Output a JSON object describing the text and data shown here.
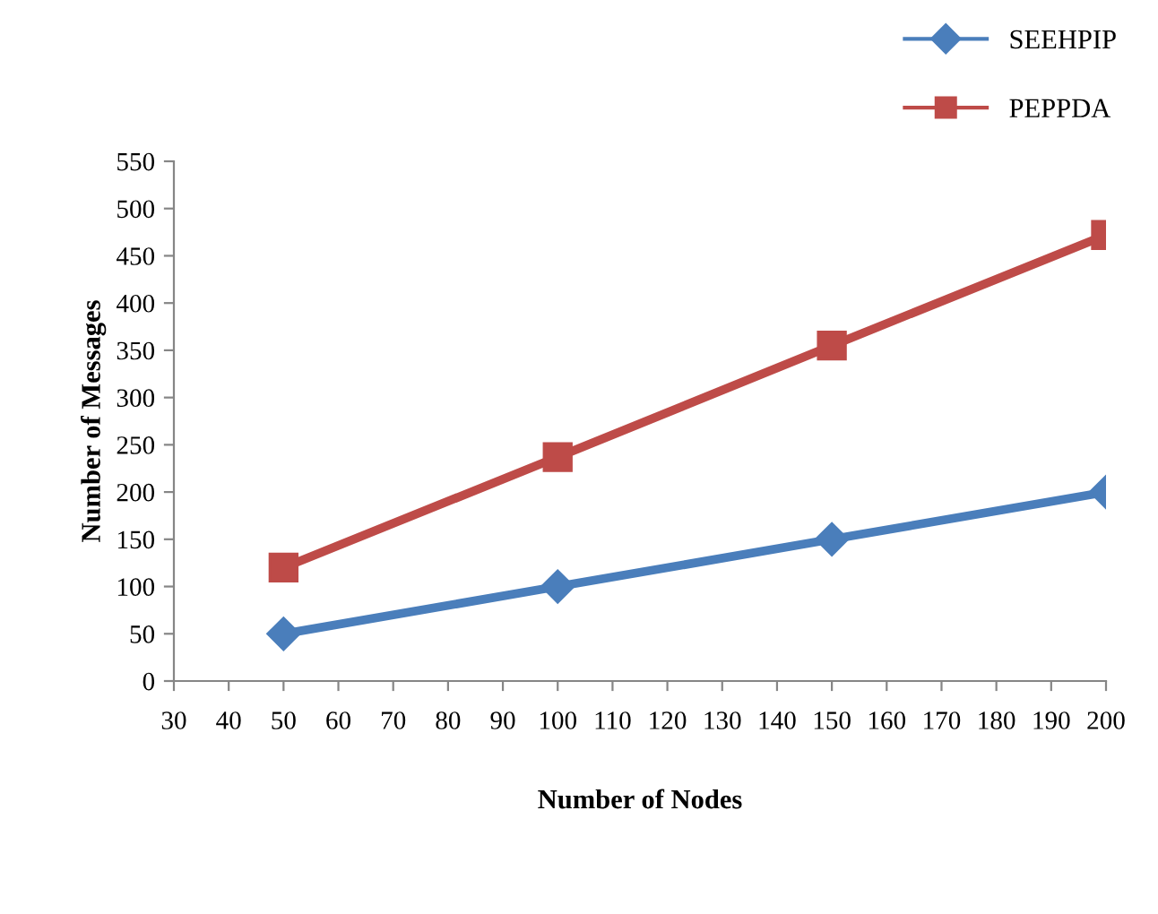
{
  "chart_data": {
    "type": "line",
    "xlabel": "Number of Nodes",
    "ylabel": "Number of Messages",
    "x": [
      50,
      100,
      150,
      200
    ],
    "series": [
      {
        "name": "SEEHPIP",
        "color": "#4a7ebb",
        "marker": "diamond",
        "values": [
          50,
          100,
          150,
          200
        ]
      },
      {
        "name": "PEPPDA",
        "color": "#be4b48",
        "marker": "square",
        "values": [
          120,
          237,
          355,
          472
        ]
      }
    ],
    "xlim": [
      30,
      200
    ],
    "xticks": [
      30,
      40,
      50,
      60,
      70,
      80,
      90,
      100,
      110,
      120,
      130,
      140,
      150,
      160,
      170,
      180,
      190,
      200
    ],
    "ylim": [
      0,
      550
    ],
    "yticks": [
      0,
      50,
      100,
      150,
      200,
      250,
      300,
      350,
      400,
      450,
      500,
      550
    ],
    "grid": false,
    "legend": "top right",
    "line_style": "solid"
  }
}
